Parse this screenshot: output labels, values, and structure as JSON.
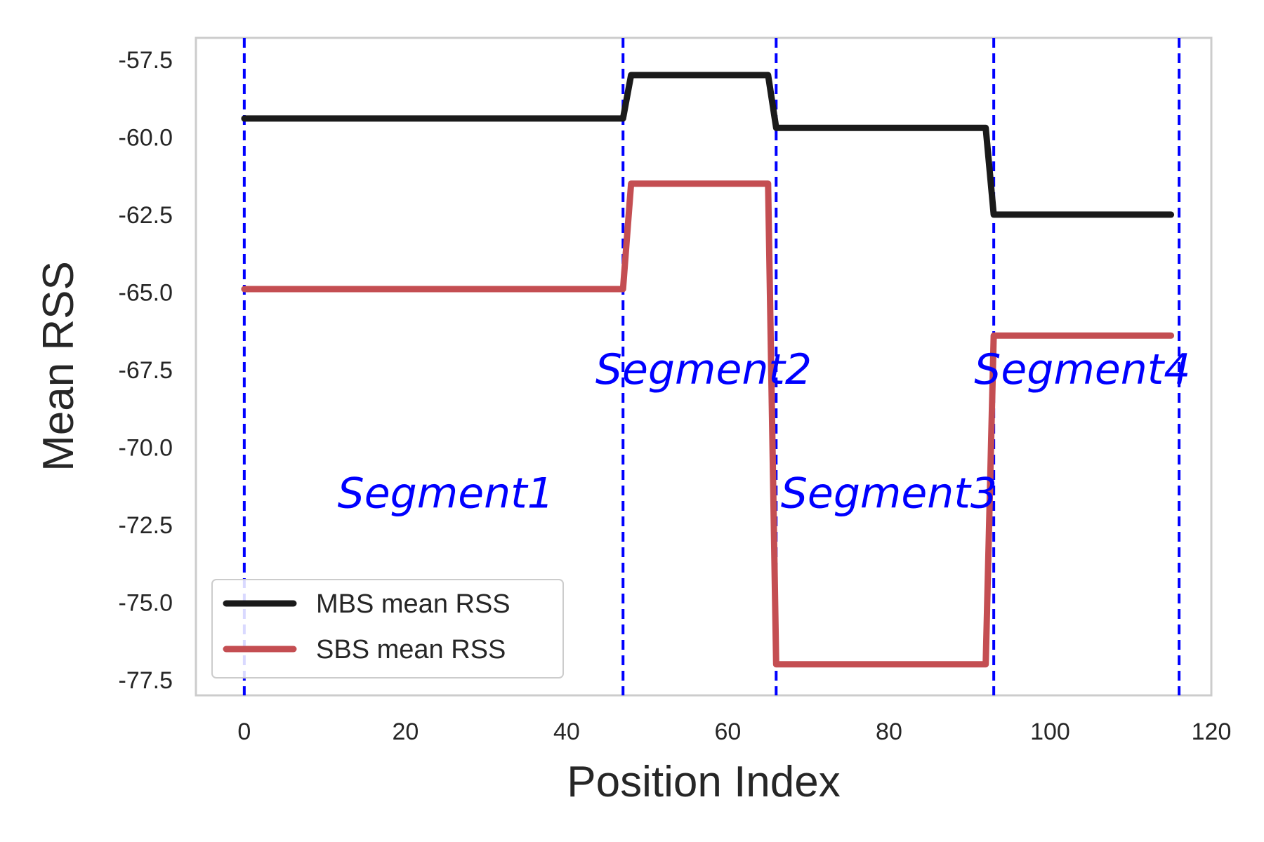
{
  "chart_data": {
    "type": "line",
    "xlabel": "Position Index",
    "ylabel": "Mean RSS",
    "xlim": [
      -6,
      120
    ],
    "ylim": [
      -78.0,
      -56.8
    ],
    "xticks": [
      0,
      20,
      40,
      60,
      80,
      100,
      120
    ],
    "yticks": [
      -57.5,
      -60.0,
      -62.5,
      -65.0,
      -67.5,
      -70.0,
      -72.5,
      -75.0,
      -77.5
    ],
    "grid": false,
    "legend_position": "lower-left",
    "series": [
      {
        "name": "MBS mean RSS",
        "color": "#1a1a1a",
        "x": [
          0,
          47,
          48,
          65,
          66,
          92,
          93,
          115
        ],
        "y": [
          -59.4,
          -59.4,
          -58.0,
          -58.0,
          -59.7,
          -59.7,
          -62.5,
          -62.5
        ]
      },
      {
        "name": "SBS mean RSS",
        "color": "#c44e52",
        "x": [
          0,
          47,
          48,
          65,
          66,
          92,
          93,
          115
        ],
        "y": [
          -64.9,
          -64.9,
          -61.5,
          -61.5,
          -77.0,
          -77.0,
          -66.4,
          -66.4
        ]
      }
    ],
    "vlines": {
      "color": "#0000ff",
      "style": "dashed",
      "x": [
        0,
        47,
        66,
        93,
        116
      ]
    },
    "annotations": [
      {
        "text": "Segment1",
        "x": 25,
        "y": -71.5
      },
      {
        "text": "Segment2",
        "x": 57,
        "y": -67.5
      },
      {
        "text": "Segment3",
        "x": 80,
        "y": -71.5
      },
      {
        "text": "Segment4",
        "x": 104,
        "y": -67.5
      }
    ]
  }
}
